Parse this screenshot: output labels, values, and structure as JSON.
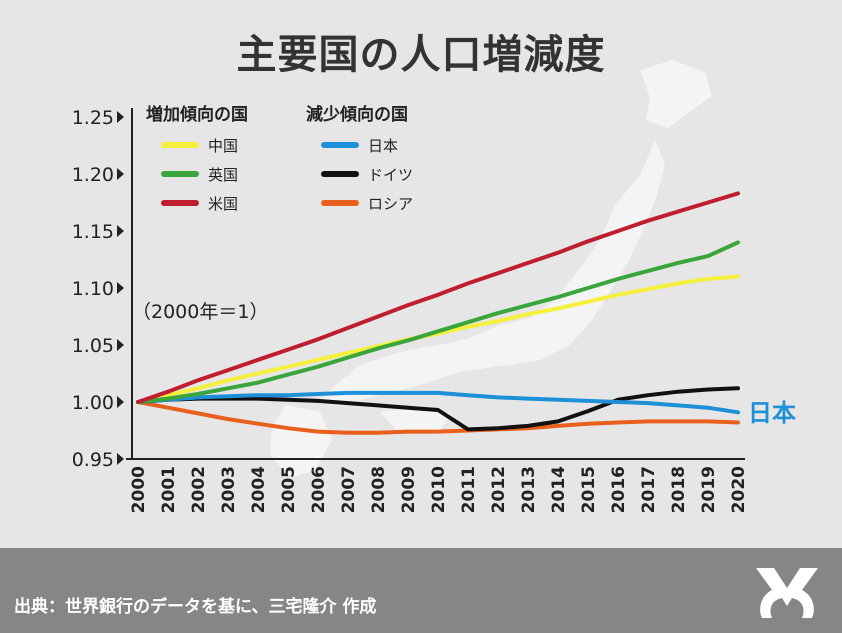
{
  "title": "主要国の人口増減度",
  "source": "出典：世界銀行のデータを基に、三宅隆介 作成",
  "note": "（2000年＝1）",
  "end_label": "日本",
  "colors": {
    "background": "#e6e6e6",
    "footer": "#868686",
    "china": "#f5f03c",
    "uk": "#3aa53a",
    "usa": "#c01e2e",
    "japan": "#1e90d8",
    "germany": "#111111",
    "russia": "#e8601c"
  },
  "chart_data": {
    "type": "line",
    "xlabel": "",
    "ylabel": "",
    "ylim": [
      0.95,
      1.25
    ],
    "yticks": [
      "1.25",
      "1.20",
      "1.15",
      "1.10",
      "1.05",
      "1.00",
      "0.95"
    ],
    "grid": false,
    "legend_groups": [
      "増加傾向の国",
      "減少傾向の国"
    ],
    "x": [
      "2000",
      "2001",
      "2002",
      "2003",
      "2004",
      "2005",
      "2006",
      "2007",
      "2008",
      "2009",
      "2010",
      "2011",
      "2012",
      "2013",
      "2014",
      "2015",
      "2016",
      "2017",
      "2018",
      "2019",
      "2020"
    ],
    "series": [
      {
        "name": "中国",
        "group": 0,
        "color": "#f5f03c",
        "values": [
          1.0,
          1.006,
          1.012,
          1.019,
          1.025,
          1.031,
          1.037,
          1.043,
          1.049,
          1.055,
          1.06,
          1.066,
          1.071,
          1.077,
          1.082,
          1.088,
          1.094,
          1.099,
          1.104,
          1.108,
          1.11
        ]
      },
      {
        "name": "英国",
        "group": 0,
        "color": "#3aa53a",
        "values": [
          1.0,
          1.003,
          1.007,
          1.012,
          1.017,
          1.024,
          1.031,
          1.039,
          1.047,
          1.054,
          1.062,
          1.07,
          1.078,
          1.085,
          1.092,
          1.1,
          1.108,
          1.115,
          1.122,
          1.128,
          1.14
        ]
      },
      {
        "name": "米国",
        "group": 0,
        "color": "#c01e2e",
        "values": [
          1.0,
          1.009,
          1.019,
          1.028,
          1.037,
          1.046,
          1.055,
          1.065,
          1.075,
          1.085,
          1.094,
          1.104,
          1.113,
          1.122,
          1.131,
          1.141,
          1.15,
          1.159,
          1.167,
          1.175,
          1.183
        ]
      },
      {
        "name": "日本",
        "group": 1,
        "color": "#1e90d8",
        "values": [
          1.0,
          1.002,
          1.004,
          1.005,
          1.006,
          1.006,
          1.007,
          1.008,
          1.008,
          1.008,
          1.008,
          1.006,
          1.004,
          1.003,
          1.002,
          1.001,
          1.0,
          0.999,
          0.997,
          0.995,
          0.991
        ]
      },
      {
        "name": "ドイツ",
        "group": 1,
        "color": "#111111",
        "values": [
          1.0,
          1.002,
          1.003,
          1.003,
          1.003,
          1.002,
          1.001,
          0.999,
          0.997,
          0.995,
          0.993,
          0.976,
          0.977,
          0.979,
          0.983,
          0.992,
          1.002,
          1.006,
          1.009,
          1.011,
          1.012
        ]
      },
      {
        "name": "ロシア",
        "group": 1,
        "color": "#e8601c",
        "values": [
          1.0,
          0.995,
          0.99,
          0.985,
          0.981,
          0.977,
          0.974,
          0.973,
          0.973,
          0.974,
          0.974,
          0.975,
          0.976,
          0.977,
          0.979,
          0.981,
          0.982,
          0.983,
          0.983,
          0.983,
          0.982
        ]
      }
    ]
  }
}
